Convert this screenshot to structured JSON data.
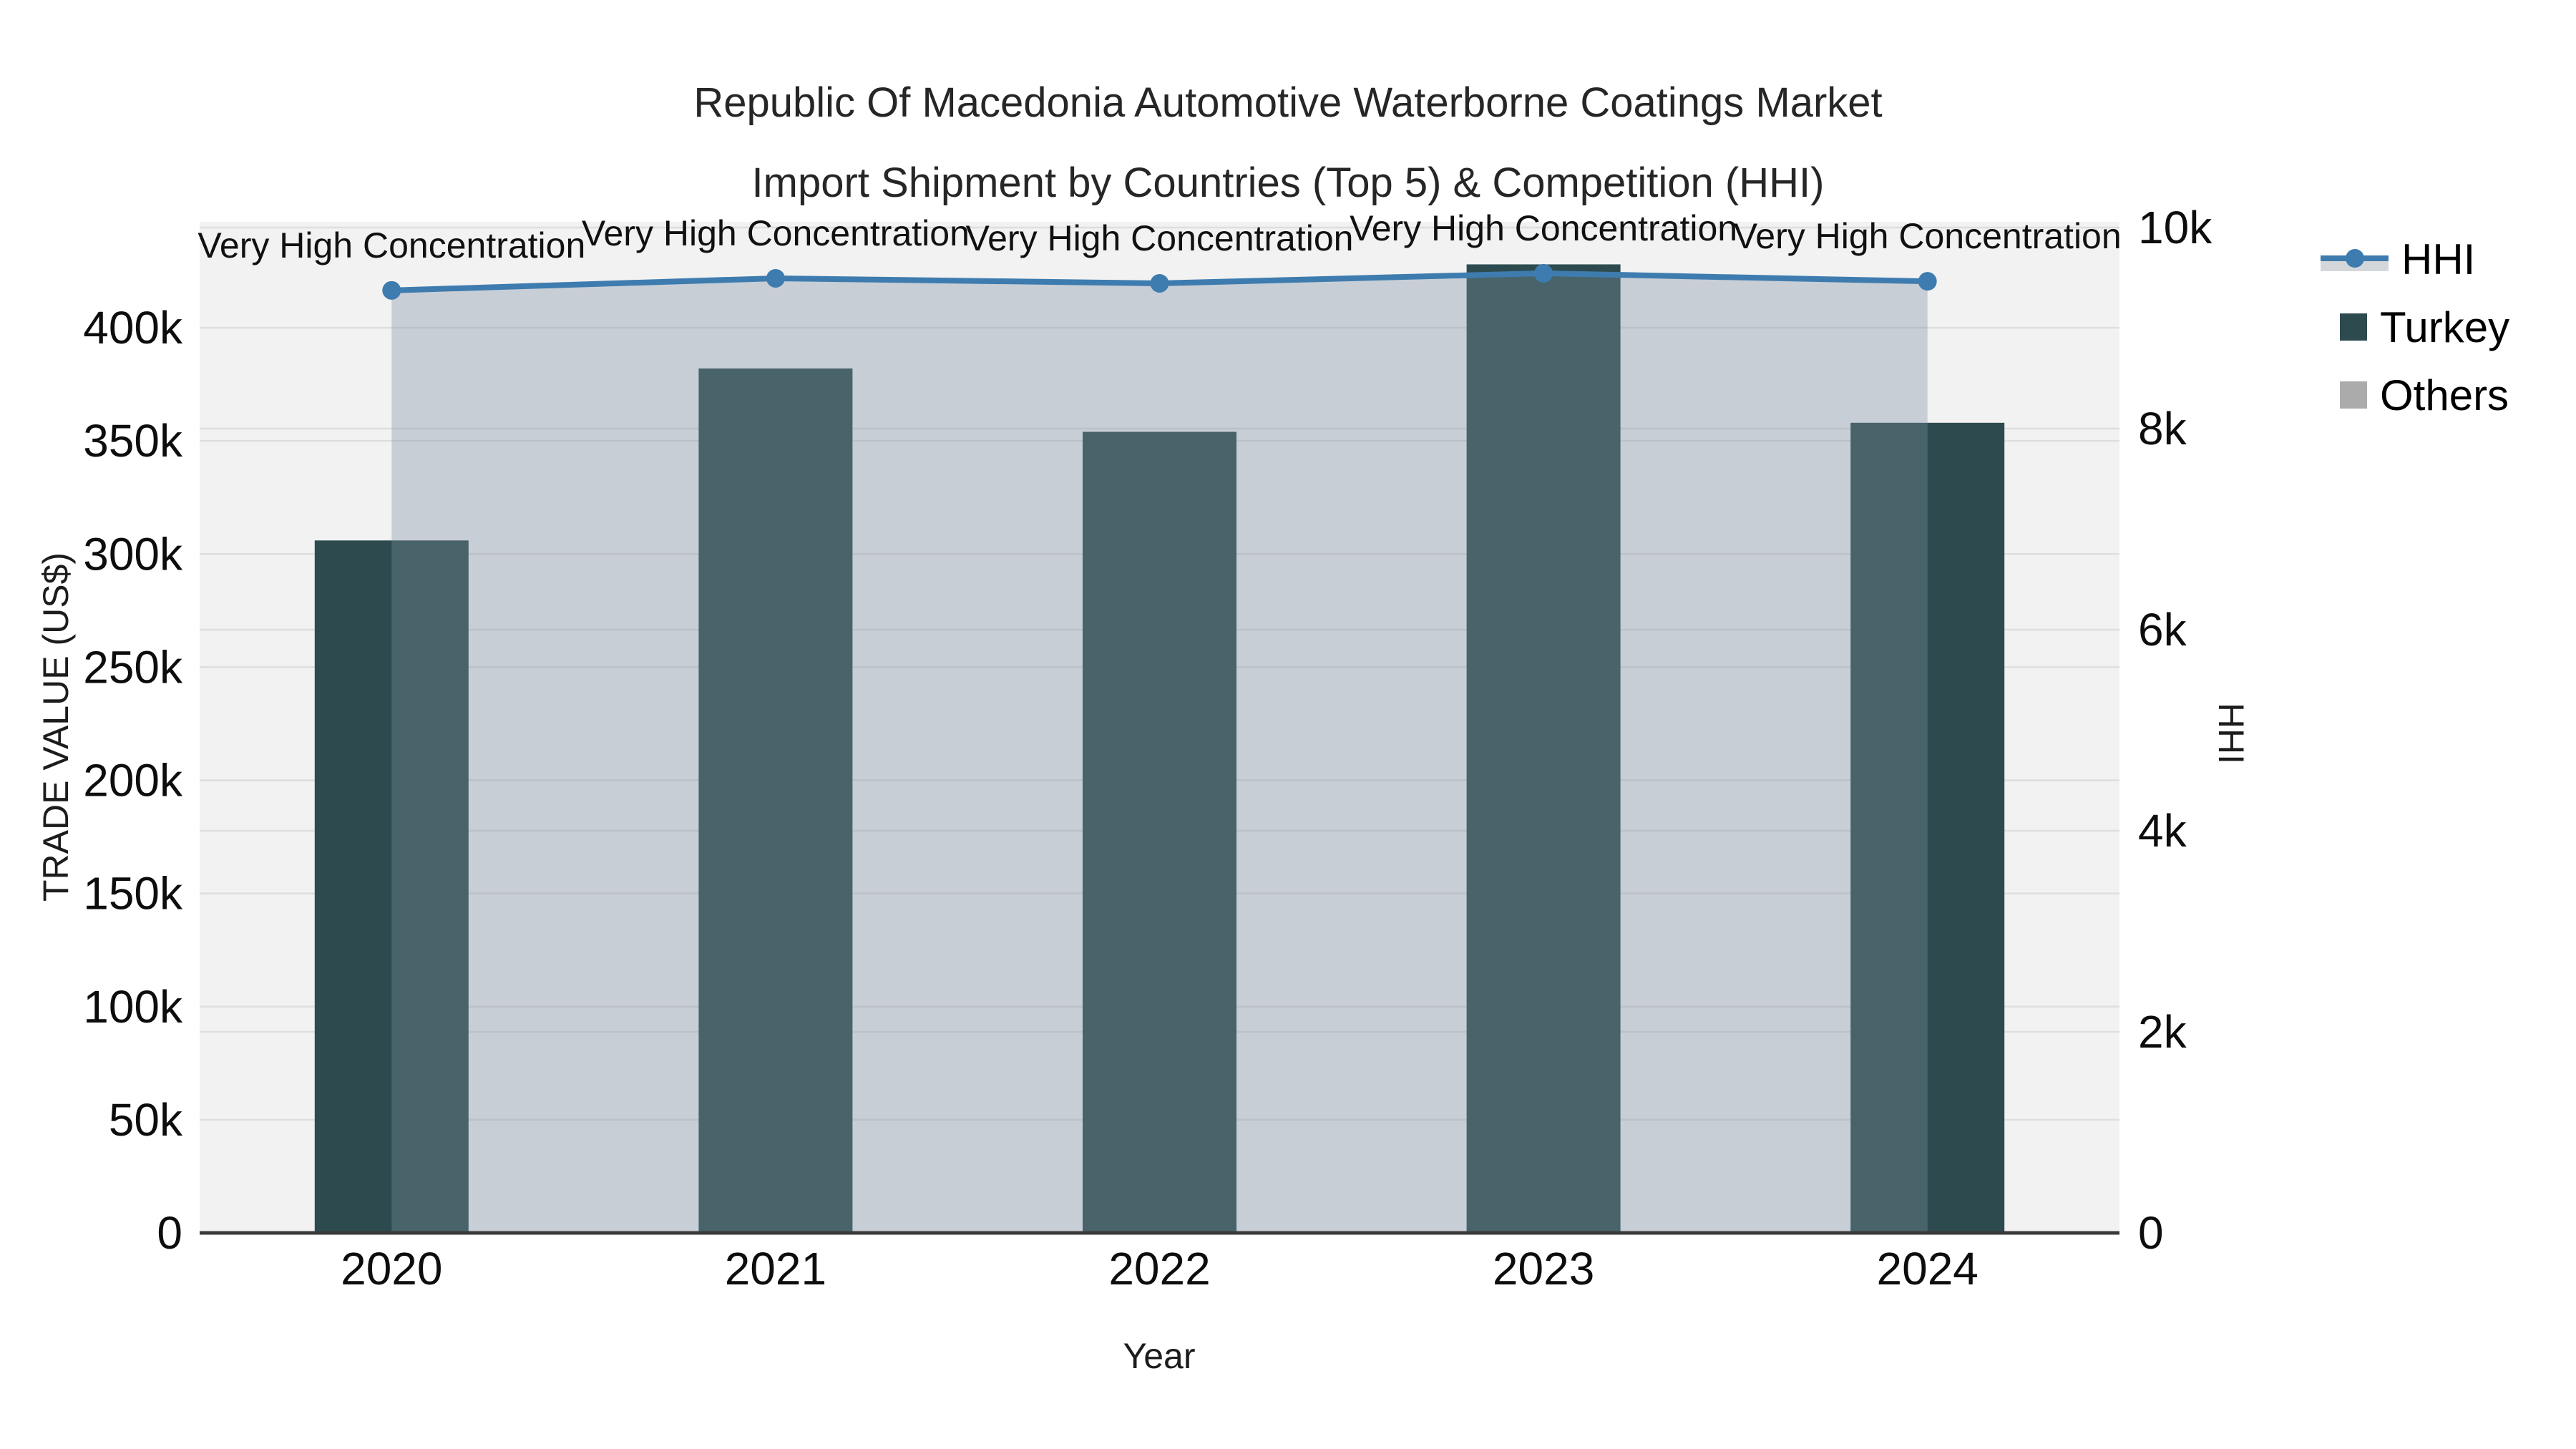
{
  "title": {
    "line1": "Republic Of Macedonia Automotive Waterborne Coatings Market",
    "line2": "Import Shipment by Countries (Top 5) & Competition (HHI)"
  },
  "legend": {
    "position": "top-right",
    "items": [
      {
        "label": "HHI",
        "symbol": "line-marker-area",
        "color": "#3e7caf"
      },
      {
        "label": "Turkey",
        "symbol": "square",
        "color": "#2d4b4e"
      },
      {
        "label": "Others",
        "symbol": "square",
        "color": "#ababab"
      }
    ]
  },
  "chart_data": {
    "type": "combo-bar-line",
    "title": "Republic Of Macedonia Automotive Waterborne Coatings Market Import Shipment by Countries (Top 5) & Competition (HHI)",
    "categories": [
      "2020",
      "2021",
      "2022",
      "2023",
      "2024"
    ],
    "series": [
      {
        "name": "Turkey",
        "type": "bar",
        "axis": "left",
        "color": "#2d4b4e",
        "values": [
          306000,
          382000,
          354000,
          428000,
          358000
        ]
      },
      {
        "name": "HHI",
        "type": "line+markers+area",
        "axis": "right",
        "color": "#3e7caf",
        "area_color": "rgba(124,140,161,0.36)",
        "values": [
          9375,
          9495,
          9445,
          9545,
          9465
        ]
      },
      {
        "name": "Others",
        "type": "bar",
        "axis": "left",
        "color": "#ababab",
        "values": [
          0,
          0,
          0,
          0,
          0
        ]
      }
    ],
    "annotations": {
      "text": "Very High Concentration",
      "per_point": [
        "Very High Concentration",
        "Very High Concentration",
        "Very High Concentration",
        "Very High Concentration",
        "Very High Concentration"
      ]
    },
    "x_axis": {
      "title": "Year"
    },
    "y_left": {
      "title": "TRADE VALUE (US$)",
      "range": [
        0,
        446800
      ],
      "ticks": [
        {
          "v": 0,
          "label": "0"
        },
        {
          "v": 50000,
          "label": "50k"
        },
        {
          "v": 100000,
          "label": "100k"
        },
        {
          "v": 150000,
          "label": "150k"
        },
        {
          "v": 200000,
          "label": "200k"
        },
        {
          "v": 250000,
          "label": "250k"
        },
        {
          "v": 300000,
          "label": "300k"
        },
        {
          "v": 350000,
          "label": "350k"
        },
        {
          "v": 400000,
          "label": "400k"
        }
      ]
    },
    "y_right": {
      "title": "HHI",
      "range": [
        0,
        10057
      ],
      "ticks": [
        {
          "v": 0,
          "label": "0"
        },
        {
          "v": 2000,
          "label": "2k"
        },
        {
          "v": 4000,
          "label": "4k"
        },
        {
          "v": 6000,
          "label": "6k"
        },
        {
          "v": 8000,
          "label": "8k"
        },
        {
          "v": 10000,
          "label": "10k"
        }
      ]
    },
    "grid": true,
    "colors": {
      "plot_bg": "#f2f2f2",
      "grid_line": "#dedede",
      "axis_line": "#3a3a3a",
      "tick_text": "#0d0d0d",
      "annotation_text": "#111111"
    }
  }
}
